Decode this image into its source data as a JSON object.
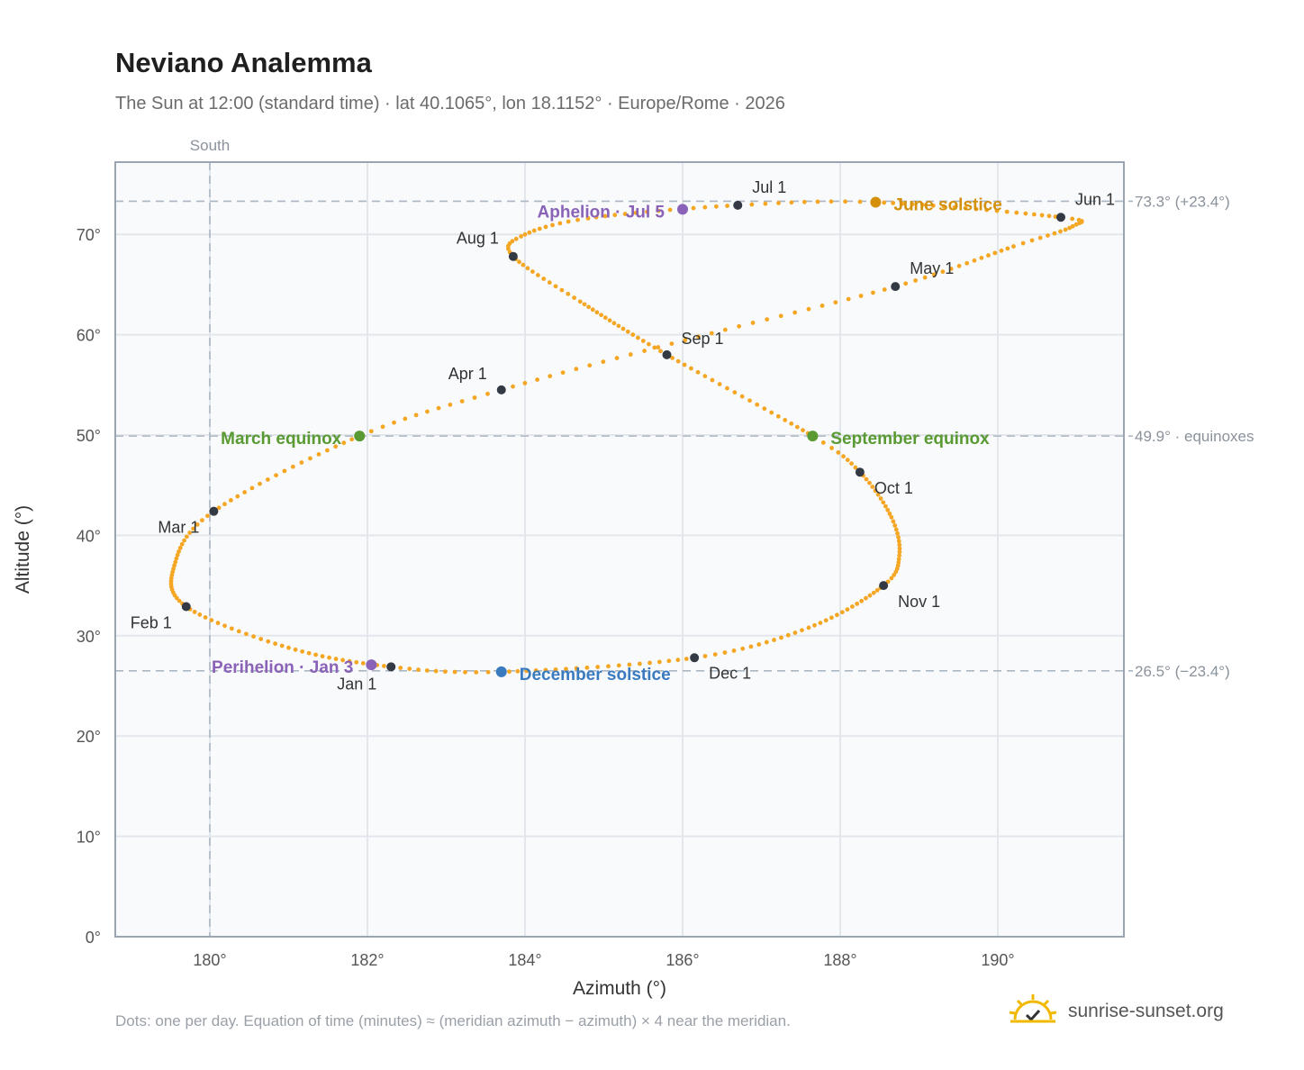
{
  "title": "Neviano Analemma",
  "subtitle": "The Sun at 12:00 (standard time) · lat 40.1065°, lon 18.1152° · Europe/Rome · 2026",
  "footnote": "Dots: one per day. Equation of time (minutes) ≈ (meridian azimuth − azimuth) × 4 near the meridian.",
  "brand": {
    "text": "sunrise-sunset.org",
    "icon": "sun-check-icon",
    "icon_color": "#f2b800"
  },
  "colors": {
    "curve": "#f5a623",
    "month_dot": "#333a44",
    "june_solstice": "#d4900a",
    "december_solstice": "#3a7abf",
    "equinox": "#5a9a32",
    "apsis": "#8a62b8",
    "grid": "#e3e7ec",
    "plot_bg": "#f8fafc",
    "frame": "#9aa4b2",
    "ref_line": "#aab6c2"
  },
  "chart_data": {
    "type": "scatter",
    "title": "Neviano Analemma",
    "xlabel": "Azimuth (°)",
    "ylabel": "Altitude (°)",
    "xlim": [
      178.8,
      191.6
    ],
    "ylim": [
      0,
      77.2
    ],
    "xticks": [
      180,
      182,
      184,
      186,
      188,
      190
    ],
    "xtick_labels": [
      "180°",
      "182°",
      "184°",
      "186°",
      "188°",
      "190°"
    ],
    "yticks": [
      0,
      10,
      20,
      30,
      40,
      50,
      60,
      70
    ],
    "ytick_labels": [
      "0°",
      "10°",
      "20°",
      "30°",
      "40°",
      "50°",
      "60°",
      "70°"
    ],
    "grid": true,
    "south_line": {
      "azimuth": 180,
      "label": "South"
    },
    "reference_lines": [
      {
        "altitude": 73.3,
        "label": "73.3° (+23.4°)"
      },
      {
        "altitude": 49.9,
        "label": "49.9° · equinoxes"
      },
      {
        "altitude": 26.5,
        "label": "26.5° (−23.4°)"
      }
    ],
    "curve_keypoints": [
      {
        "day": 0,
        "az": 182.3,
        "alt": 26.9
      },
      {
        "day": 15,
        "az": 181.0,
        "alt": 28.8
      },
      {
        "day": 31,
        "az": 179.7,
        "alt": 32.9
      },
      {
        "day": 45,
        "az": 179.55,
        "alt": 37.0
      },
      {
        "day": 59,
        "az": 180.05,
        "alt": 42.4
      },
      {
        "day": 78,
        "az": 181.9,
        "alt": 49.9
      },
      {
        "day": 90,
        "az": 183.7,
        "alt": 54.5
      },
      {
        "day": 105,
        "az": 186.2,
        "alt": 59.8
      },
      {
        "day": 120,
        "az": 188.7,
        "alt": 64.8
      },
      {
        "day": 135,
        "az": 190.2,
        "alt": 68.8
      },
      {
        "day": 144,
        "az": 190.95,
        "alt": 70.8
      },
      {
        "day": 151,
        "az": 190.8,
        "alt": 71.7
      },
      {
        "day": 171,
        "az": 188.45,
        "alt": 73.2
      },
      {
        "day": 181,
        "az": 186.7,
        "alt": 72.9
      },
      {
        "day": 195,
        "az": 184.8,
        "alt": 71.6
      },
      {
        "day": 205,
        "az": 183.95,
        "alt": 69.8
      },
      {
        "day": 212,
        "az": 183.85,
        "alt": 67.8
      },
      {
        "day": 225,
        "az": 184.7,
        "alt": 63.3
      },
      {
        "day": 243,
        "az": 185.8,
        "alt": 58.0
      },
      {
        "day": 265,
        "az": 187.65,
        "alt": 49.9
      },
      {
        "day": 273,
        "az": 188.25,
        "alt": 46.3
      },
      {
        "day": 285,
        "az": 188.65,
        "alt": 41.8
      },
      {
        "day": 295,
        "az": 188.75,
        "alt": 38.0
      },
      {
        "day": 304,
        "az": 188.55,
        "alt": 35.0
      },
      {
        "day": 320,
        "az": 187.6,
        "alt": 30.8
      },
      {
        "day": 334,
        "az": 186.15,
        "alt": 27.8
      },
      {
        "day": 354,
        "az": 183.7,
        "alt": 26.4
      },
      {
        "day": 365,
        "az": 182.3,
        "alt": 26.9
      }
    ],
    "months": [
      {
        "label": "Jan 1",
        "az": 182.3,
        "alt": 26.9,
        "anchor": "end"
      },
      {
        "label": "Feb 1",
        "az": 179.7,
        "alt": 32.9,
        "anchor": "end"
      },
      {
        "label": "Mar 1",
        "az": 180.05,
        "alt": 42.4,
        "anchor": "end"
      },
      {
        "label": "Apr 1",
        "az": 183.7,
        "alt": 54.5,
        "anchor": "end"
      },
      {
        "label": "May 1",
        "az": 188.7,
        "alt": 64.8,
        "anchor": "start"
      },
      {
        "label": "Jun 1",
        "az": 190.8,
        "alt": 71.7,
        "anchor": "start"
      },
      {
        "label": "Jul 1",
        "az": 186.7,
        "alt": 72.9,
        "anchor": "start"
      },
      {
        "label": "Aug 1",
        "az": 183.85,
        "alt": 67.8,
        "anchor": "end"
      },
      {
        "label": "Sep 1",
        "az": 185.8,
        "alt": 58.0,
        "anchor": "start"
      },
      {
        "label": "Oct 1",
        "az": 188.25,
        "alt": 46.3,
        "anchor": "start"
      },
      {
        "label": "Nov 1",
        "az": 188.55,
        "alt": 35.0,
        "anchor": "start"
      },
      {
        "label": "Dec 1",
        "az": 186.15,
        "alt": 27.8,
        "anchor": "start"
      }
    ],
    "events": [
      {
        "label": "June solstice",
        "az": 188.45,
        "alt": 73.2,
        "color": "#d4900a",
        "anchor": "start"
      },
      {
        "label": "December solstice",
        "az": 183.7,
        "alt": 26.4,
        "color": "#3a7abf",
        "anchor": "start"
      },
      {
        "label": "March equinox",
        "az": 181.9,
        "alt": 49.9,
        "color": "#5a9a32",
        "anchor": "end"
      },
      {
        "label": "September equinox",
        "az": 187.65,
        "alt": 49.9,
        "color": "#5a9a32",
        "anchor": "start"
      },
      {
        "label": "Aphelion · Jul 5",
        "az": 186.0,
        "alt": 72.5,
        "color": "#8a62b8",
        "anchor": "end"
      },
      {
        "label": "Perihelion · Jan 3",
        "az": 182.05,
        "alt": 27.1,
        "color": "#8a62b8",
        "anchor": "end"
      }
    ]
  }
}
